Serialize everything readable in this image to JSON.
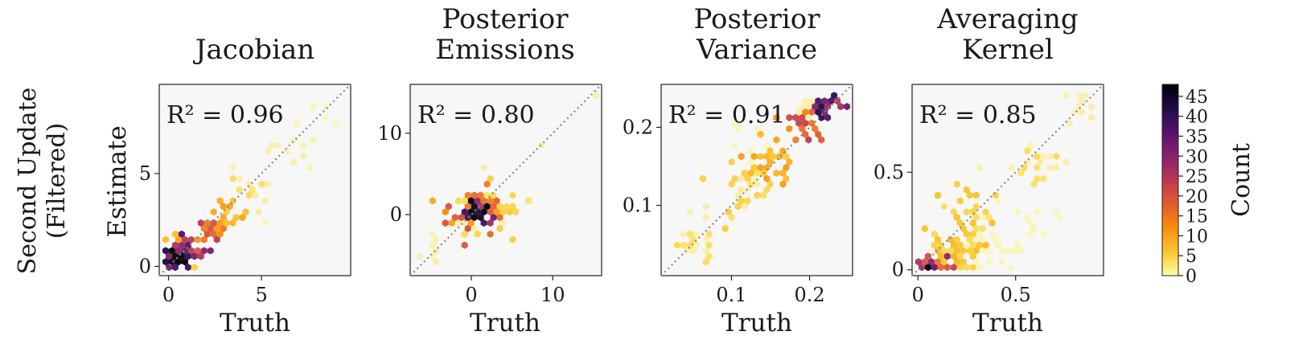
{
  "row_label": [
    "Second Update",
    "(Filtered)"
  ],
  "colorbar": {
    "label": "Count",
    "ticks": [
      0,
      5,
      10,
      15,
      20,
      25,
      30,
      35,
      40,
      45
    ],
    "range": [
      0,
      48
    ],
    "colormap": [
      "#fcffa4",
      "#fac62d",
      "#f98e09",
      "#e45a31",
      "#bc3754",
      "#8a226a",
      "#57106e",
      "#1f0c48",
      "#000004"
    ]
  },
  "chart_data": [
    {
      "type": "heatmap",
      "title": "Jacobian",
      "xlabel": "Truth",
      "ylabel": "Estimate",
      "annotation": "R² = 0.96",
      "xlim": [
        -0.5,
        9.8
      ],
      "ylim": [
        -0.5,
        9.8
      ],
      "xticks": [
        0,
        5
      ],
      "yticks": [
        0,
        5
      ],
      "hexbin_clusters": [
        {
          "x": 0.3,
          "y": 0.3,
          "sx": 0.35,
          "sy": 0.35,
          "n": 55,
          "count": 44
        },
        {
          "x": 1.0,
          "y": 0.8,
          "sx": 0.45,
          "sy": 0.4,
          "n": 40,
          "count": 30
        },
        {
          "x": 0.6,
          "y": 1.0,
          "sx": 0.4,
          "sy": 0.5,
          "n": 25,
          "count": 8
        },
        {
          "x": 2.2,
          "y": 2.0,
          "sx": 0.4,
          "sy": 0.4,
          "n": 22,
          "count": 18
        },
        {
          "x": 3.2,
          "y": 2.8,
          "sx": 0.4,
          "sy": 0.4,
          "n": 16,
          "count": 8
        },
        {
          "x": 4.6,
          "y": 4.3,
          "sx": 0.5,
          "sy": 0.4,
          "n": 14,
          "count": 3
        },
        {
          "x": 6.5,
          "y": 6.3,
          "sx": 0.6,
          "sy": 0.5,
          "n": 12,
          "count": 2
        },
        {
          "x": 8.5,
          "y": 8.4,
          "sx": 0.4,
          "sy": 0.3,
          "n": 5,
          "count": 1
        },
        {
          "x": 5.2,
          "y": 2.2,
          "sx": 0.05,
          "sy": 0.05,
          "n": 1,
          "count": 1
        }
      ]
    },
    {
      "type": "heatmap",
      "title": "Posterior Emissions",
      "xlabel": "Truth",
      "ylabel": "",
      "annotation": "R² = 0.80",
      "xlim": [
        -7.5,
        16
      ],
      "ylim": [
        -7.5,
        16
      ],
      "xticks": [
        0,
        10
      ],
      "yticks": [
        0,
        10
      ],
      "hexbin_clusters": [
        {
          "x": 1.0,
          "y": 0.5,
          "sx": 0.8,
          "sy": 0.8,
          "n": 40,
          "count": 42
        },
        {
          "x": 0.5,
          "y": 0.0,
          "sx": 1.6,
          "sy": 1.6,
          "n": 45,
          "count": 15
        },
        {
          "x": 1.0,
          "y": 0.5,
          "sx": 2.2,
          "sy": 2.2,
          "n": 40,
          "count": 4
        },
        {
          "x": -4.5,
          "y": -4.0,
          "sx": 1.2,
          "sy": 1.0,
          "n": 8,
          "count": 2
        },
        {
          "x": 8.5,
          "y": 8.5,
          "sx": 0.05,
          "sy": 0.05,
          "n": 1,
          "count": 2
        },
        {
          "x": 15.0,
          "y": 15.0,
          "sx": 0.05,
          "sy": 0.05,
          "n": 1,
          "count": 2
        }
      ]
    },
    {
      "type": "heatmap",
      "title": "Posterior Variance",
      "xlabel": "Truth",
      "ylabel": "",
      "annotation": "R² = 0.91",
      "xlim": [
        0.01,
        0.255
      ],
      "ylim": [
        0.01,
        0.255
      ],
      "xticks": [
        0.1,
        0.2
      ],
      "yticks": [
        0.1,
        0.2
      ],
      "hexbin_clusters": [
        {
          "x": 0.05,
          "y": 0.05,
          "sx": 0.015,
          "sy": 0.012,
          "n": 22,
          "count": 3
        },
        {
          "x": 0.11,
          "y": 0.115,
          "sx": 0.015,
          "sy": 0.015,
          "n": 28,
          "count": 4
        },
        {
          "x": 0.15,
          "y": 0.155,
          "sx": 0.015,
          "sy": 0.015,
          "n": 30,
          "count": 8
        },
        {
          "x": 0.19,
          "y": 0.2,
          "sx": 0.012,
          "sy": 0.012,
          "n": 26,
          "count": 18
        },
        {
          "x": 0.215,
          "y": 0.225,
          "sx": 0.01,
          "sy": 0.008,
          "n": 24,
          "count": 35
        },
        {
          "x": 0.23,
          "y": 0.232,
          "sx": 0.006,
          "sy": 0.005,
          "n": 10,
          "count": 45
        },
        {
          "x": 0.12,
          "y": 0.17,
          "sx": 0.02,
          "sy": 0.03,
          "n": 14,
          "count": 1
        },
        {
          "x": 0.195,
          "y": 0.225,
          "sx": 0.012,
          "sy": 0.01,
          "n": 12,
          "count": 2
        }
      ]
    },
    {
      "type": "heatmap",
      "title": "Averaging Kernel",
      "xlabel": "Truth",
      "ylabel": "",
      "annotation": "R² = 0.85",
      "xlim": [
        -0.03,
        0.95
      ],
      "ylim": [
        -0.03,
        0.95
      ],
      "xticks": [
        0.0,
        0.5
      ],
      "yticks": [
        0.0,
        0.5
      ],
      "hexbin_clusters": [
        {
          "x": 0.02,
          "y": 0.0,
          "sx": 0.03,
          "sy": 0.005,
          "n": 14,
          "count": 44
        },
        {
          "x": 0.08,
          "y": 0.03,
          "sx": 0.05,
          "sy": 0.025,
          "n": 24,
          "count": 22
        },
        {
          "x": 0.18,
          "y": 0.08,
          "sx": 0.09,
          "sy": 0.06,
          "n": 60,
          "count": 6
        },
        {
          "x": 0.35,
          "y": 0.1,
          "sx": 0.12,
          "sy": 0.07,
          "n": 40,
          "count": 1
        },
        {
          "x": 0.3,
          "y": 0.3,
          "sx": 0.08,
          "sy": 0.08,
          "n": 28,
          "count": 5
        },
        {
          "x": 0.55,
          "y": 0.55,
          "sx": 0.09,
          "sy": 0.08,
          "n": 24,
          "count": 3
        },
        {
          "x": 0.82,
          "y": 0.82,
          "sx": 0.06,
          "sy": 0.05,
          "n": 10,
          "count": 2
        },
        {
          "x": 0.55,
          "y": 0.2,
          "sx": 0.08,
          "sy": 0.08,
          "n": 12,
          "count": 1
        }
      ]
    }
  ]
}
